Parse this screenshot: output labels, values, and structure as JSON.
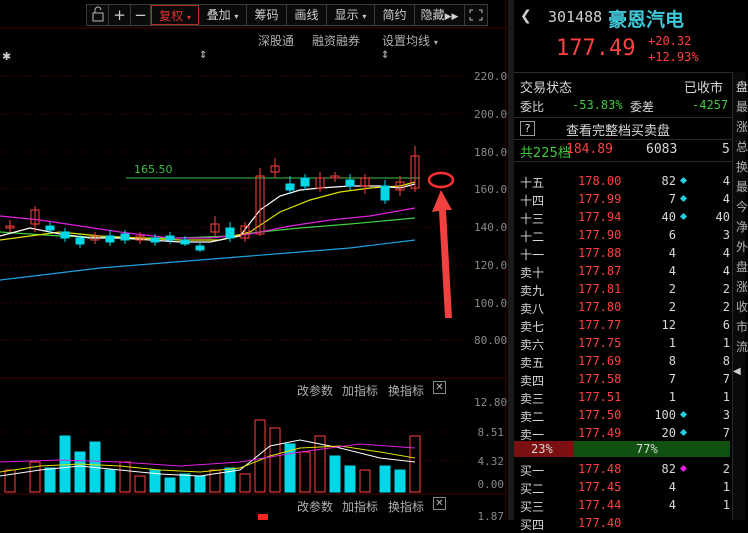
{
  "toolbar": {
    "buttons": [
      "复权",
      "叠加",
      "筹码",
      "画线",
      "显示",
      "简约",
      "隐藏"
    ]
  },
  "subtools": {
    "a": "深股通",
    "b": "融资融券",
    "c": "设置均线"
  },
  "chart": {
    "level_label": "165.50",
    "axis": [
      "220.00",
      "200.00",
      "180.00",
      "160.00",
      "140.00",
      "120.00",
      "100.00",
      "80.00"
    ]
  },
  "volume_panel": {
    "btn1": "改参数",
    "btn2": "加指标",
    "btn3": "换指标",
    "axis": [
      "12.80",
      "8.51",
      "4.32",
      "0.00"
    ]
  },
  "lower_panel": {
    "btn1": "改参数",
    "btn2": "加指标",
    "btn3": "换指标",
    "axis_top": "1.87"
  },
  "stock": {
    "code": "301488",
    "name": "豪恩汽电",
    "price": "177.49",
    "change": "+20.32",
    "change_pct": "+12.93%"
  },
  "status": {
    "label": "交易状态",
    "value": "已收市"
  },
  "ratio": {
    "wb_label": "委比",
    "wb_value": "-53.83%",
    "wc_label": "委差",
    "wc_value": "-4257"
  },
  "book_link": {
    "icon": "?",
    "label": "查看完整档买卖盘"
  },
  "total": {
    "label": "共225档",
    "price": "184.89",
    "vol": "6083",
    "count": "5"
  },
  "asks": [
    {
      "label": "十五",
      "price": "178.00",
      "vol": "82",
      "cnt": "4",
      "dot": "cyan"
    },
    {
      "label": "十四",
      "price": "177.99",
      "vol": "7",
      "cnt": "4",
      "dot": "cyan"
    },
    {
      "label": "十三",
      "price": "177.94",
      "vol": "40",
      "cnt": "40",
      "dot": "cyan"
    },
    {
      "label": "十二",
      "price": "177.90",
      "vol": "6",
      "cnt": "3",
      "dot": "none"
    },
    {
      "label": "十一",
      "price": "177.88",
      "vol": "4",
      "cnt": "4",
      "dot": "none"
    },
    {
      "label": "卖十",
      "price": "177.87",
      "vol": "4",
      "cnt": "4",
      "dot": "none"
    },
    {
      "label": "卖九",
      "price": "177.81",
      "vol": "2",
      "cnt": "2",
      "dot": "none"
    },
    {
      "label": "卖八",
      "price": "177.80",
      "vol": "2",
      "cnt": "2",
      "dot": "none"
    },
    {
      "label": "卖七",
      "price": "177.77",
      "vol": "12",
      "cnt": "6",
      "dot": "none"
    },
    {
      "label": "卖六",
      "price": "177.75",
      "vol": "1",
      "cnt": "1",
      "dot": "none"
    },
    {
      "label": "卖五",
      "price": "177.69",
      "vol": "8",
      "cnt": "8",
      "dot": "none"
    },
    {
      "label": "卖四",
      "price": "177.58",
      "vol": "7",
      "cnt": "7",
      "dot": "none"
    },
    {
      "label": "卖三",
      "price": "177.51",
      "vol": "1",
      "cnt": "1",
      "dot": "none"
    },
    {
      "label": "卖二",
      "price": "177.50",
      "vol": "100",
      "cnt": "3",
      "dot": "cyan"
    },
    {
      "label": "卖一",
      "price": "177.49",
      "vol": "20",
      "cnt": "7",
      "dot": "cyan"
    }
  ],
  "balance": {
    "left": "23%",
    "right": "77%"
  },
  "bids": [
    {
      "label": "买一",
      "price": "177.48",
      "vol": "82",
      "cnt": "2",
      "dot": "magenta"
    },
    {
      "label": "买二",
      "price": "177.45",
      "vol": "4",
      "cnt": "1",
      "dot": "none"
    },
    {
      "label": "买三",
      "price": "177.44",
      "vol": "4",
      "cnt": "1",
      "dot": "none"
    },
    {
      "label": "买四",
      "price": "177.40",
      "vol": "",
      "cnt": "",
      "dot": "none"
    }
  ],
  "edge": {
    "chars": [
      "最",
      "涨",
      "总",
      "换",
      "最",
      "今",
      "净",
      "外",
      "盘",
      "涨",
      "收",
      "市",
      "流"
    ],
    "tab": "盘"
  },
  "colors": {
    "up": "#ff4040",
    "down": "#00d8e8",
    "ma5": "#ffffff",
    "ma10": "#e0e000",
    "ma20": "#e020e0",
    "ma30": "#40d040",
    "ma60": "#20a0e0"
  }
}
